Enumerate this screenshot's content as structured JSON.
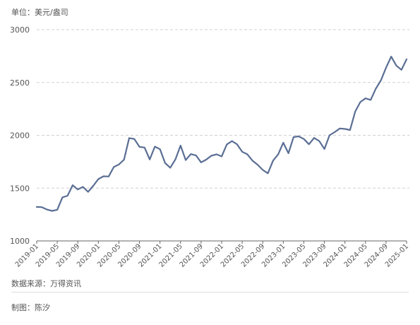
{
  "unit_label": "单位：美元/盎司",
  "source_note": "数据来源：万得资讯",
  "credit_note": "制图：陈汐",
  "colors": {
    "line": "#5a6e94",
    "grid": "#d0d0d0",
    "axis": "#666666"
  },
  "chart_data": {
    "type": "line",
    "title": "",
    "xlabel": "",
    "ylabel": "",
    "ylim": [
      1000,
      3000
    ],
    "yticks": [
      1000,
      1500,
      2000,
      2500,
      3000
    ],
    "xticks": [
      "2019-01",
      "2019-05",
      "2019-09",
      "2020-01",
      "2020-05",
      "2020-09",
      "2021-01",
      "2021-05",
      "2021-09",
      "2022-01",
      "2022-05",
      "2022-09",
      "2023-01",
      "2023-05",
      "2023-09",
      "2024-01",
      "2024-05",
      "2024-09",
      "2025-01"
    ],
    "grid": "horizontal dashed",
    "series": [
      {
        "x": [
          "2019-01",
          "2019-02",
          "2019-03",
          "2019-04",
          "2019-05",
          "2019-06",
          "2019-07",
          "2019-08",
          "2019-09",
          "2019-10",
          "2019-11",
          "2019-12",
          "2020-01",
          "2020-02",
          "2020-03",
          "2020-04",
          "2020-05",
          "2020-06",
          "2020-07",
          "2020-08",
          "2020-09",
          "2020-10",
          "2020-11",
          "2020-12",
          "2021-01",
          "2021-02",
          "2021-03",
          "2021-04",
          "2021-05",
          "2021-06",
          "2021-07",
          "2021-08",
          "2021-09",
          "2021-10",
          "2021-11",
          "2021-12",
          "2022-01",
          "2022-02",
          "2022-03",
          "2022-04",
          "2022-05",
          "2022-06",
          "2022-07",
          "2022-08",
          "2022-09",
          "2022-10",
          "2022-11",
          "2022-12",
          "2023-01",
          "2023-02",
          "2023-03",
          "2023-04",
          "2023-05",
          "2023-06",
          "2023-07",
          "2023-08",
          "2023-09",
          "2023-10",
          "2023-11",
          "2023-12",
          "2024-01",
          "2024-02",
          "2024-03",
          "2024-04",
          "2024-05",
          "2024-06",
          "2024-07",
          "2024-08",
          "2024-09",
          "2024-10",
          "2024-11",
          "2024-12",
          "2025-01"
        ],
        "values": [
          1322,
          1320,
          1297,
          1284,
          1295,
          1412,
          1428,
          1528,
          1487,
          1512,
          1464,
          1522,
          1585,
          1612,
          1610,
          1700,
          1724,
          1769,
          1974,
          1965,
          1890,
          1884,
          1771,
          1893,
          1868,
          1738,
          1693,
          1772,
          1903,
          1765,
          1822,
          1810,
          1744,
          1770,
          1807,
          1820,
          1800,
          1914,
          1945,
          1915,
          1844,
          1820,
          1760,
          1722,
          1672,
          1640,
          1760,
          1820,
          1930,
          1830,
          1983,
          1990,
          1965,
          1915,
          1975,
          1945,
          1870,
          2000,
          2030,
          2065,
          2060,
          2050,
          2225,
          2315,
          2350,
          2335,
          2440,
          2520,
          2640,
          2745,
          2660,
          2620,
          2720
        ]
      }
    ]
  }
}
